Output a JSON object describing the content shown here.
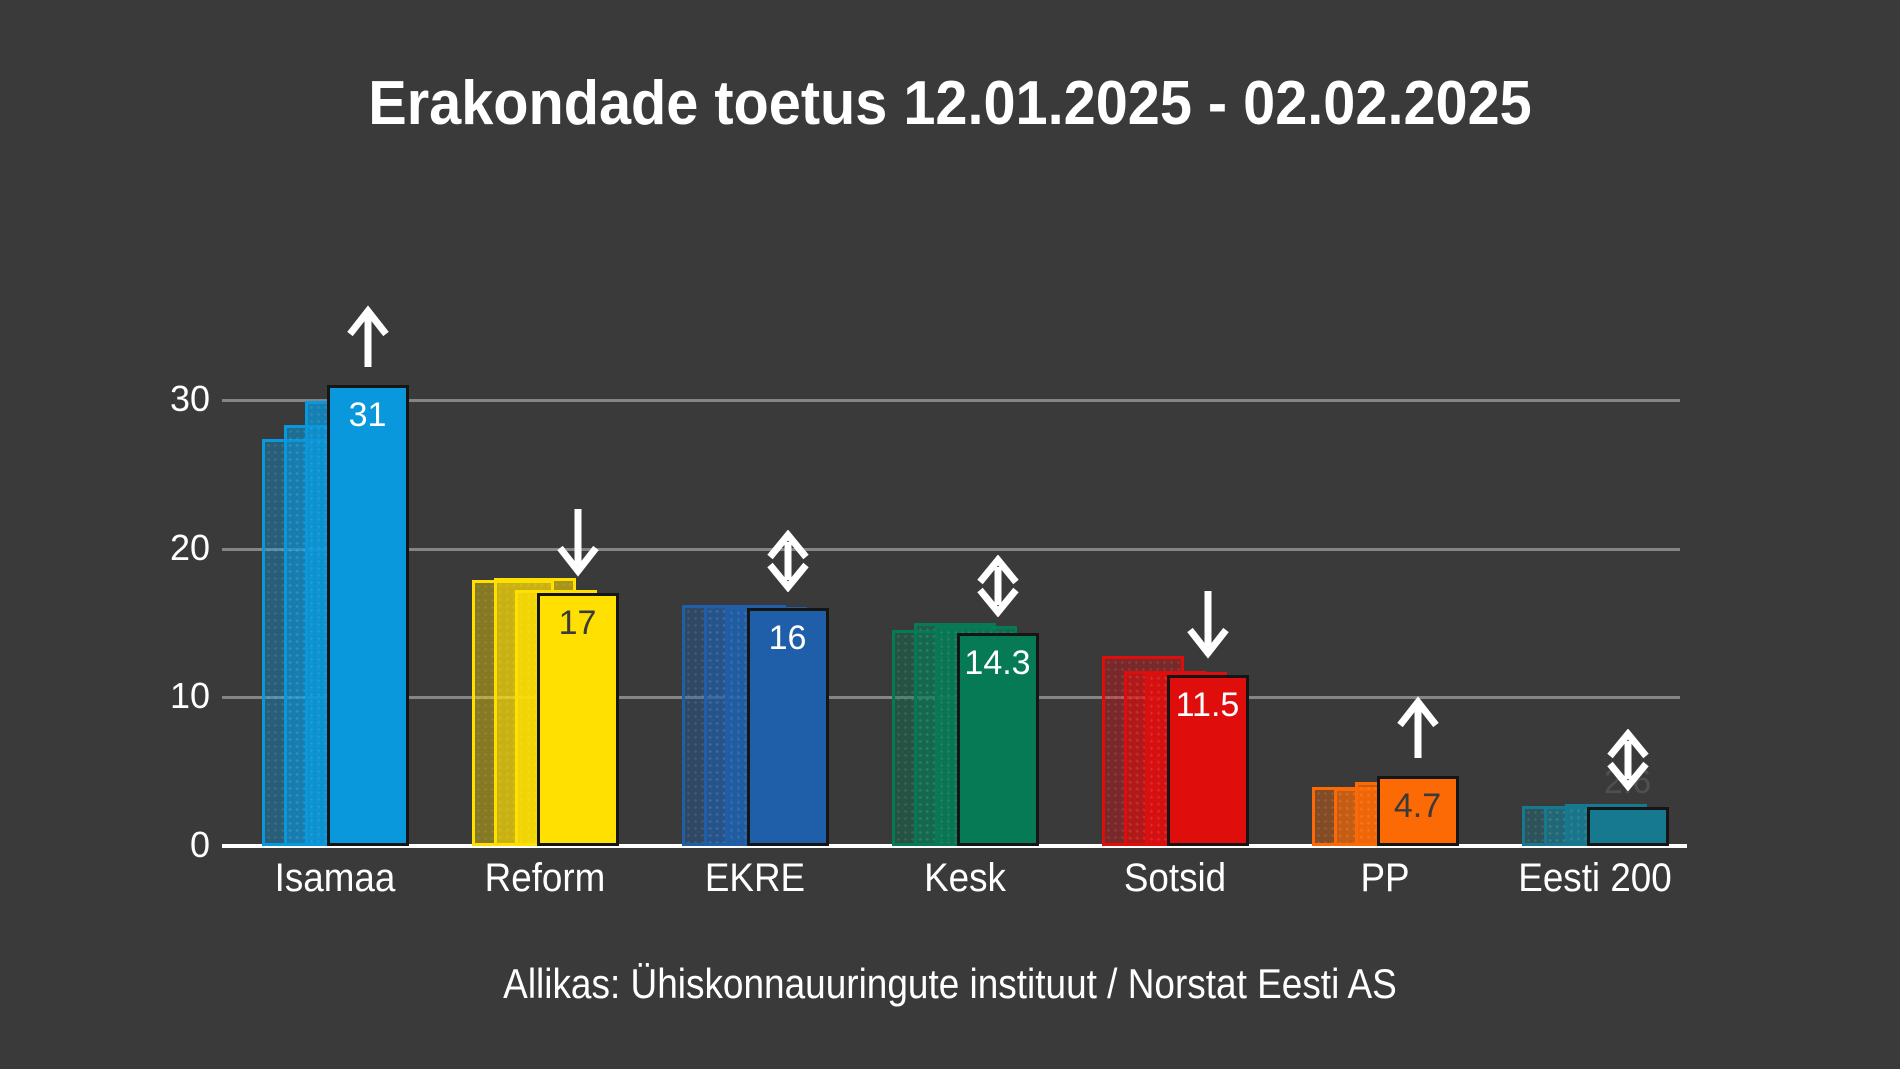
{
  "title": "Erakondade toetus 12.01.2025 - 02.02.2025",
  "source": "Allikas: Ühiskonnauuringute instituut / Norstat Eesti AS",
  "colors": {
    "background": "#3a3a3a",
    "grid": "#858585",
    "axis": "#ffffff",
    "title_text": "#ffffff",
    "bar_outline": "#151515"
  },
  "chart_data": {
    "type": "bar",
    "title": "Erakondade toetus 12.01.2025 - 02.02.2025",
    "xlabel": "",
    "ylabel": "",
    "ylim": [
      0,
      33
    ],
    "y_ticks": [
      0,
      10,
      20,
      30
    ],
    "grid": true,
    "legend": "none",
    "categories": [
      "Isamaa",
      "Reform",
      "EKRE",
      "Kesk",
      "Sotsid",
      "PP",
      "Eesti 200"
    ],
    "series_note": "Each party shows 3 semi-transparent previous poll bars followed by the solid current value bar; arrow above marks trend",
    "parties": [
      {
        "name": "Isamaa",
        "value": 31,
        "label": "31",
        "previous": [
          27.4,
          28.3,
          29.9
        ],
        "trend": "up",
        "color": "#0a98dc",
        "label_color": "#ffffff",
        "label_inside": true
      },
      {
        "name": "Reform",
        "value": 17,
        "label": "17",
        "previous": [
          17.9,
          18.0,
          17.2
        ],
        "trend": "down",
        "color": "#ffe000",
        "label_color": "#3a3a3a",
        "label_inside": true
      },
      {
        "name": "EKRE",
        "value": 16,
        "label": "16",
        "previous": [
          16.2,
          16.2,
          16.1
        ],
        "trend": "both",
        "color": "#1f5fa9",
        "label_color": "#ffffff",
        "label_inside": true
      },
      {
        "name": "Kesk",
        "value": 14.3,
        "label": "14.3",
        "previous": [
          14.5,
          15.0,
          14.8
        ],
        "trend": "both",
        "color": "#067a55",
        "label_color": "#ffffff",
        "label_inside": true
      },
      {
        "name": "Sotsid",
        "value": 11.5,
        "label": "11.5",
        "previous": [
          12.8,
          11.8,
          11.7
        ],
        "trend": "down",
        "color": "#e00d0d",
        "label_color": "#ffffff",
        "label_inside": true
      },
      {
        "name": "PP",
        "value": 4.7,
        "label": "4.7",
        "previous": [
          4.0,
          3.9,
          4.3
        ],
        "trend": "up",
        "color": "#fb6a04",
        "label_color": "#3a3a3a",
        "label_inside": true
      },
      {
        "name": "Eesti 200",
        "value": 2.6,
        "label": "2.6",
        "previous": [
          2.7,
          2.7,
          2.8
        ],
        "trend": "both",
        "color": "#17798f",
        "label_color": "#4c504f",
        "label_inside": false
      }
    ]
  }
}
